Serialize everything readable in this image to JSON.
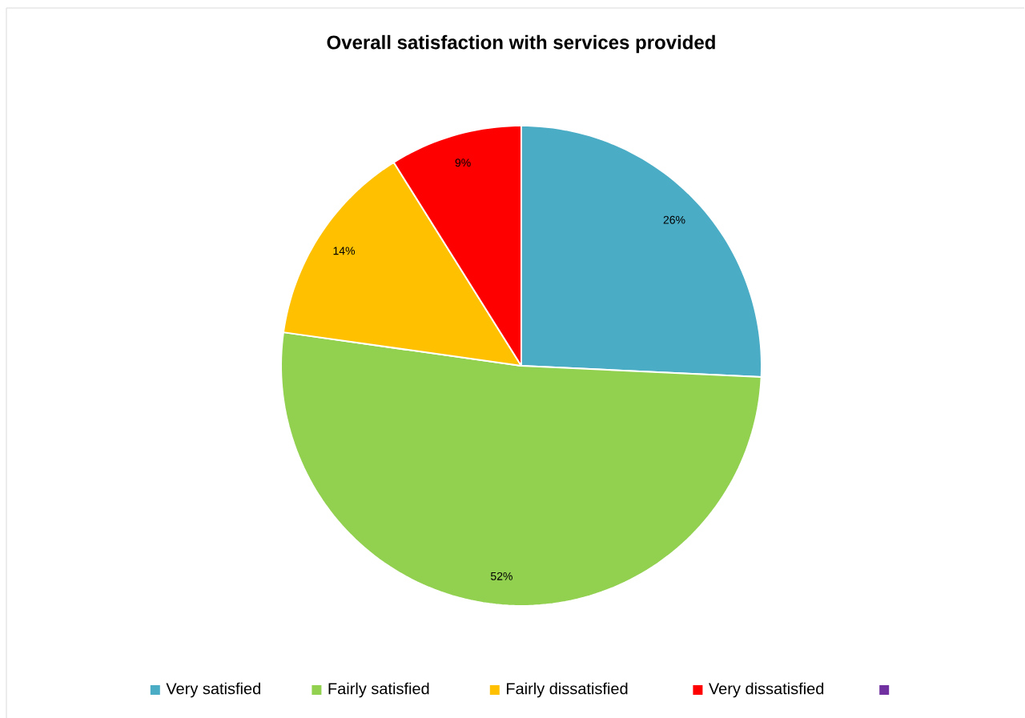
{
  "chart_data": {
    "type": "pie",
    "title": "Overall satisfaction with services provided",
    "categories": [
      "Very satisfied",
      "Fairly satisfied",
      "Fairly dissatisfied",
      "Very dissatisfied",
      null
    ],
    "values": [
      26,
      52,
      14,
      9,
      0
    ],
    "colors": [
      "#4bacc6",
      "#92d050",
      "#ffc000",
      "#ff0000",
      "#7030a0"
    ],
    "value_labels": [
      "26%",
      "52%",
      "14%",
      "9%",
      null
    ],
    "legend": "bottom"
  }
}
